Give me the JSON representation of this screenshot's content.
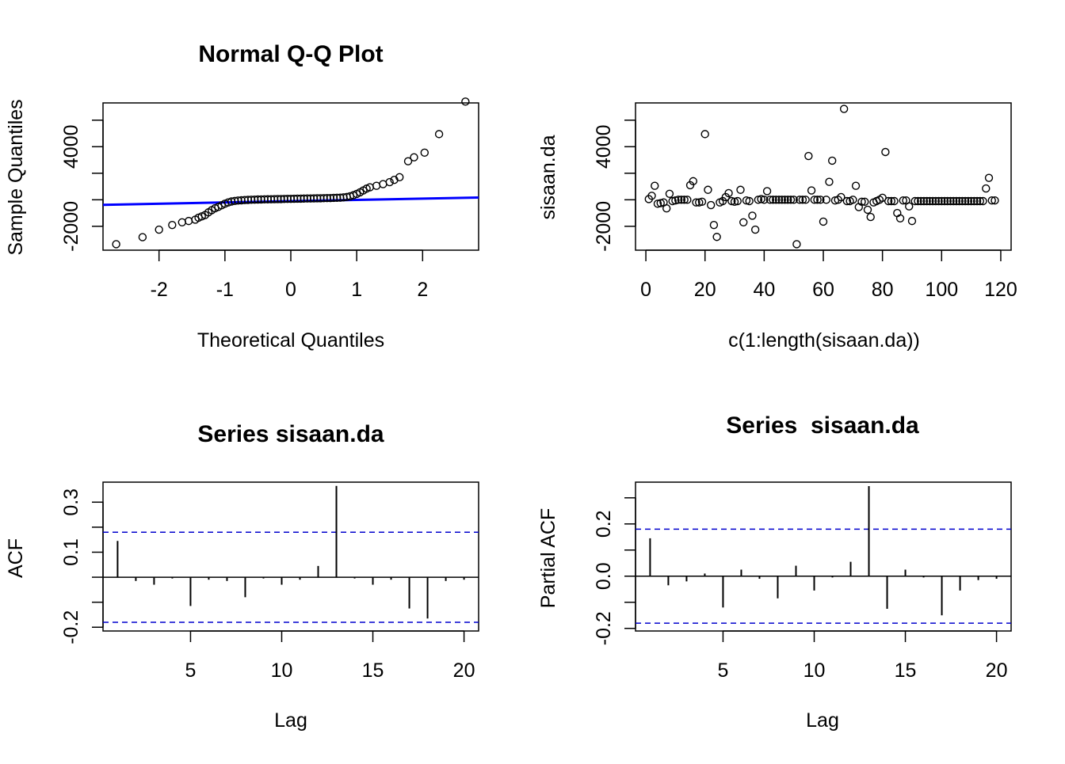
{
  "chart_data": [
    {
      "type": "scatter",
      "title": "Normal Q-Q Plot",
      "xlabel": "Theoretical Quantiles",
      "ylabel": "Sample Quantiles",
      "xlim": [
        -2.85,
        2.85
      ],
      "ylim": [
        -3800,
        7300
      ],
      "x_ticks": [
        -2,
        -1,
        0,
        1,
        2
      ],
      "x_tick_labels": [
        "-2",
        "-1",
        "0",
        "1",
        "2"
      ],
      "y_ticks": [
        -2000,
        0,
        2000,
        4000,
        6000
      ],
      "y_tick_labels": [
        "-2000",
        "",
        "",
        "4000",
        ""
      ],
      "reference_line": {
        "color": "#0000ff",
        "points": [
          [
            -2.85,
            -380
          ],
          [
            2.85,
            170
          ]
        ]
      },
      "points": [
        [
          -2.65,
          -3350
        ],
        [
          -2.25,
          -2820
        ],
        [
          -2.0,
          -2250
        ],
        [
          -1.8,
          -1900
        ],
        [
          -1.65,
          -1700
        ],
        [
          -1.55,
          -1600
        ],
        [
          -1.45,
          -1500
        ],
        [
          -1.4,
          -1350
        ],
        [
          -1.35,
          -1250
        ],
        [
          -1.3,
          -1150
        ],
        [
          -1.25,
          -950
        ],
        [
          -1.2,
          -780
        ],
        [
          -1.15,
          -640
        ],
        [
          -1.1,
          -540
        ],
        [
          -1.05,
          -420
        ],
        [
          -1.0,
          -300
        ],
        [
          -0.95,
          -200
        ],
        [
          -0.9,
          -130
        ],
        [
          -0.85,
          -90
        ],
        [
          -0.8,
          -60
        ],
        [
          -0.75,
          -40
        ],
        [
          -0.7,
          -20
        ],
        [
          -0.65,
          -10
        ],
        [
          -0.6,
          0
        ],
        [
          -0.55,
          10
        ],
        [
          -0.5,
          20
        ],
        [
          -0.45,
          25
        ],
        [
          -0.4,
          30
        ],
        [
          -0.35,
          35
        ],
        [
          -0.3,
          40
        ],
        [
          -0.25,
          45
        ],
        [
          -0.2,
          50
        ],
        [
          -0.15,
          55
        ],
        [
          -0.1,
          60
        ],
        [
          -0.05,
          65
        ],
        [
          0.0,
          70
        ],
        [
          0.05,
          75
        ],
        [
          0.1,
          80
        ],
        [
          0.15,
          85
        ],
        [
          0.2,
          90
        ],
        [
          0.25,
          95
        ],
        [
          0.3,
          100
        ],
        [
          0.35,
          105
        ],
        [
          0.4,
          110
        ],
        [
          0.45,
          115
        ],
        [
          0.5,
          120
        ],
        [
          0.55,
          125
        ],
        [
          0.6,
          130
        ],
        [
          0.65,
          140
        ],
        [
          0.7,
          150
        ],
        [
          0.75,
          160
        ],
        [
          0.8,
          180
        ],
        [
          0.85,
          210
        ],
        [
          0.9,
          260
        ],
        [
          0.95,
          340
        ],
        [
          1.0,
          440
        ],
        [
          1.05,
          560
        ],
        [
          1.1,
          700
        ],
        [
          1.15,
          840
        ],
        [
          1.2,
          940
        ],
        [
          1.3,
          1050
        ],
        [
          1.4,
          1180
        ],
        [
          1.5,
          1330
        ],
        [
          1.57,
          1500
        ],
        [
          1.65,
          1700
        ],
        [
          1.78,
          2900
        ],
        [
          1.87,
          3200
        ],
        [
          2.03,
          3550
        ],
        [
          2.25,
          4950
        ],
        [
          2.65,
          7400
        ]
      ]
    },
    {
      "type": "scatter",
      "title": "",
      "xlabel": "c(1:length(sisaan.da))",
      "ylabel": "sisaan.da",
      "xlim": [
        -3.5,
        123.5
      ],
      "ylim": [
        -3800,
        7300
      ],
      "x_ticks": [
        0,
        20,
        40,
        60,
        80,
        100,
        120
      ],
      "x_tick_labels": [
        "0",
        "20",
        "40",
        "60",
        "80",
        "100",
        "120"
      ],
      "y_ticks": [
        -2000,
        0,
        2000,
        4000,
        6000
      ],
      "y_tick_labels": [
        "-2000",
        "",
        "",
        "4000",
        ""
      ],
      "x": [
        1,
        2,
        3,
        4,
        5,
        6,
        7,
        8,
        9,
        10,
        11,
        12,
        13,
        14,
        15,
        16,
        17,
        18,
        19,
        20,
        21,
        22,
        23,
        24,
        25,
        26,
        27,
        28,
        29,
        30,
        31,
        32,
        33,
        34,
        35,
        36,
        37,
        38,
        39,
        40,
        41,
        42,
        43,
        44,
        45,
        46,
        47,
        48,
        49,
        50,
        51,
        52,
        53,
        54,
        55,
        56,
        57,
        58,
        59,
        60,
        61,
        62,
        63,
        64,
        65,
        66,
        67,
        68,
        69,
        70,
        71,
        72,
        73,
        74,
        75,
        76,
        77,
        78,
        79,
        80,
        81,
        82,
        83,
        84,
        85,
        86,
        87,
        88,
        89,
        90,
        91,
        92,
        93,
        94,
        95,
        96,
        97,
        98,
        99,
        100,
        101,
        102,
        103,
        104,
        105,
        106,
        107,
        108,
        109,
        110,
        111,
        112,
        113,
        114,
        115,
        116,
        117,
        118
      ],
      "y": [
        50,
        300,
        1050,
        -300,
        -250,
        -200,
        -650,
        450,
        -100,
        -50,
        0,
        0,
        0,
        0,
        1100,
        1400,
        -200,
        -200,
        -150,
        4950,
        750,
        -400,
        -1900,
        -2800,
        -200,
        -100,
        200,
        500,
        -100,
        -150,
        -100,
        750,
        -1700,
        -50,
        -100,
        -1200,
        -2250,
        0,
        50,
        0,
        650,
        0,
        0,
        0,
        0,
        0,
        0,
        0,
        0,
        0,
        -3350,
        0,
        0,
        0,
        3300,
        700,
        0,
        0,
        0,
        -1650,
        0,
        1350,
        2950,
        -50,
        0,
        200,
        6850,
        -100,
        -100,
        0,
        1050,
        -550,
        -150,
        -150,
        -750,
        -1300,
        -200,
        -100,
        0,
        150,
        3600,
        -100,
        -100,
        -100,
        -1000,
        -1400,
        -50,
        -50,
        -500,
        -1600,
        -100,
        -100,
        -100,
        -100,
        -100,
        -100,
        -100,
        -100,
        -100,
        -100,
        -100,
        -100,
        -100,
        -100,
        -100,
        -100,
        -100,
        -100,
        -100,
        -100,
        -100,
        -100,
        -100,
        -100,
        850,
        1650,
        -50,
        -50
      ]
    },
    {
      "type": "bar",
      "title": "Series sisaan.da",
      "xlabel": "Lag",
      "ylabel": "ACF",
      "xlim": [
        0.2,
        20.8
      ],
      "ylim": [
        -0.215,
        0.38
      ],
      "x_ticks": [
        5,
        10,
        15,
        20
      ],
      "x_tick_labels": [
        "5",
        "10",
        "15",
        "20"
      ],
      "y_ticks": [
        -0.2,
        -0.1,
        0.0,
        0.1,
        0.2,
        0.3
      ],
      "y_tick_labels": [
        "-0.2",
        "",
        "",
        "0.1",
        "",
        "0.3"
      ],
      "ci": 0.18,
      "ci_color": "#0000cd",
      "lags": [
        1,
        2,
        3,
        4,
        5,
        6,
        7,
        8,
        9,
        10,
        11,
        12,
        13,
        14,
        15,
        16,
        17,
        18,
        19,
        20
      ],
      "values": [
        0.145,
        -0.015,
        -0.03,
        -0.005,
        -0.115,
        -0.01,
        -0.015,
        -0.08,
        -0.005,
        -0.03,
        -0.01,
        0.045,
        0.365,
        -0.005,
        -0.03,
        -0.01,
        -0.125,
        -0.165,
        -0.015,
        -0.01
      ]
    },
    {
      "type": "bar",
      "title": "Series  sisaan.da",
      "xlabel": "Lag",
      "ylabel": "Partial ACF",
      "xlim": [
        0.2,
        20.8
      ],
      "ylim": [
        -0.21,
        0.36
      ],
      "x_ticks": [
        5,
        10,
        15,
        20
      ],
      "x_tick_labels": [
        "5",
        "10",
        "15",
        "20"
      ],
      "y_ticks": [
        -0.2,
        -0.1,
        0.0,
        0.1,
        0.2,
        0.3
      ],
      "y_tick_labels": [
        "-0.2",
        "",
        "0.0",
        "",
        "0.2",
        ""
      ],
      "ci": 0.18,
      "ci_color": "#0000cd",
      "lags": [
        1,
        2,
        3,
        4,
        5,
        6,
        7,
        8,
        9,
        10,
        11,
        12,
        13,
        14,
        15,
        16,
        17,
        18,
        19,
        20
      ],
      "values": [
        0.145,
        -0.035,
        -0.02,
        0.01,
        -0.12,
        0.025,
        -0.01,
        -0.085,
        0.04,
        -0.055,
        -0.005,
        0.055,
        0.345,
        -0.125,
        0.025,
        -0.005,
        -0.15,
        -0.055,
        -0.015,
        -0.01
      ]
    }
  ]
}
